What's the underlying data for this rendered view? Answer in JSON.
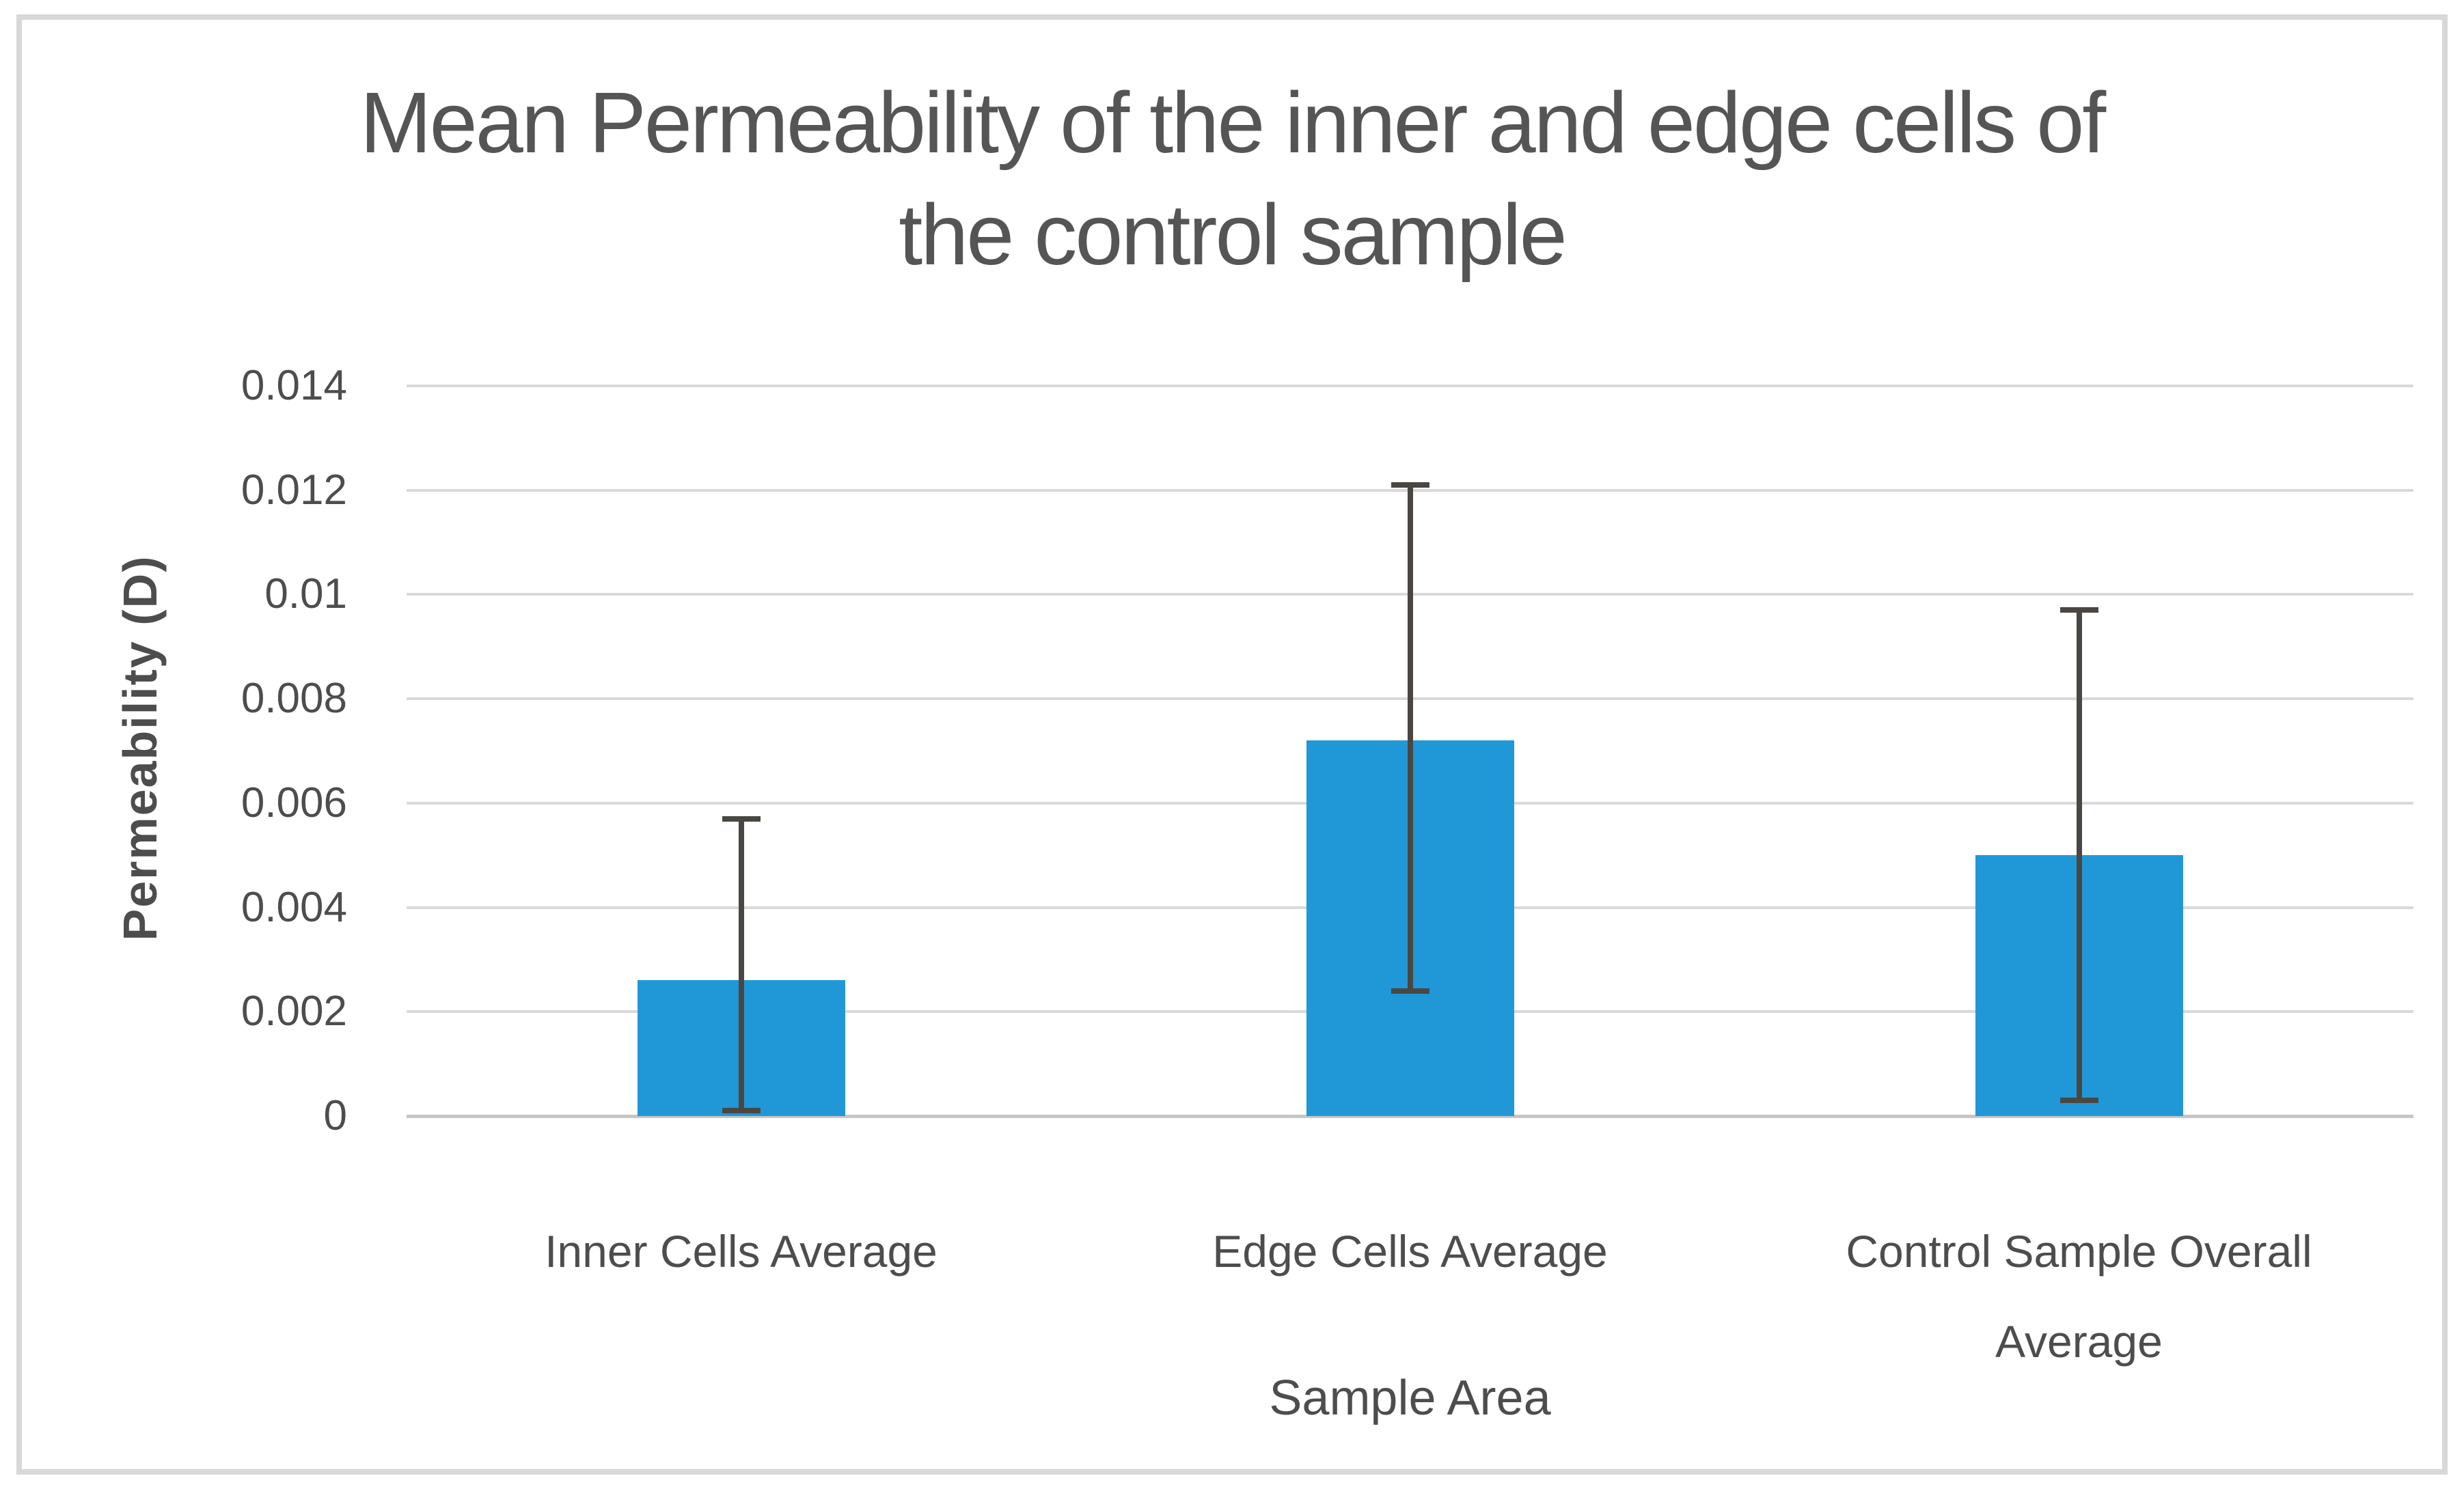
{
  "chart": {
    "title_lines": [
      "Mean Permeability of the inner and edge cells of",
      "the control sample"
    ]
  },
  "chart_data": {
    "type": "bar",
    "title": "Mean Permeability of the inner and edge cells of the control sample",
    "xlabel": "Sample Area",
    "ylabel": "Permeability (D)",
    "categories": [
      "Inner Cells Average",
      "Edge Cells Average",
      "Control Sample Overall Average"
    ],
    "values": [
      0.0026,
      0.0072,
      0.005
    ],
    "error_whisker_top": [
      0.0057,
      0.0121,
      0.0097
    ],
    "error_whisker_bottom": [
      0.0001,
      0.0024,
      0.0003
    ],
    "ylim": [
      0,
      0.014
    ],
    "ytick_step": 0.002,
    "ytick_labels": [
      "0",
      "0.002",
      "0.004",
      "0.006",
      "0.008",
      "0.01",
      "0.012",
      "0.014"
    ],
    "grid": true,
    "legend": false,
    "colors": {
      "bar": "#2098d8",
      "error_bar": "#4a4743",
      "gridline": "#d9d9d9",
      "axis_line": "#c6c6c6",
      "text": "#4d4d4d",
      "title_text": "#555555",
      "frame_border": "#d8d8d8",
      "background": "#ffffff"
    }
  }
}
